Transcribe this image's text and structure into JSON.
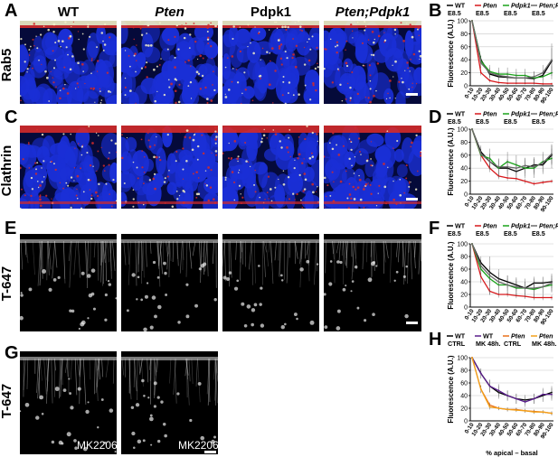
{
  "panels": {
    "A": "A",
    "B": "B",
    "C": "C",
    "D": "D",
    "E": "E",
    "F": "F",
    "G": "G",
    "H": "H"
  },
  "columns": [
    "WT",
    "Pten",
    "Pdpk1",
    "Pten;Pdpk1"
  ],
  "rows": {
    "A": "Rab5",
    "C": "Clathrin",
    "E": "T-647",
    "G": "T-647"
  },
  "g_labels": [
    "MK2206",
    "MK2206"
  ],
  "colors": {
    "wt": "#000000",
    "pten": "#d7191c",
    "pdpk1": "#1aa31a",
    "ptenpdpk1": "#6b6b6b",
    "wt_mk": "#5a1e8c",
    "pten_ctrl": "#e8701a",
    "pten_mk": "#f2a01a",
    "dapi": "#1a2fd6",
    "membrane": "#d42a2a",
    "puncta": "#f3efc8"
  },
  "chart_data": [
    {
      "id": "B",
      "type": "line",
      "legend": [
        {
          "key": "wt",
          "name": "WT",
          "sub": "E8.5",
          "italic": false
        },
        {
          "key": "pten",
          "name": "Pten",
          "sub": "E8.5",
          "italic": true
        },
        {
          "key": "pdpk1",
          "name": "Pdpk1",
          "sub": "E8.5",
          "italic": true
        },
        {
          "key": "ptenpdpk1",
          "name": "Pten;Pdpk1",
          "sub": "E8.5",
          "italic": true
        }
      ],
      "categories": [
        "0-10",
        "10-20",
        "20-30",
        "30-40",
        "40-50",
        "50-60",
        "60-70",
        "70-80",
        "80-90",
        "90-100"
      ],
      "ylabel": "Fluorescence (A.U.)",
      "xlabel": "",
      "ylim": [
        0,
        100
      ],
      "yticks": [
        "0",
        "20",
        "40",
        "60",
        "80",
        "100"
      ],
      "series": [
        {
          "key": "wt",
          "values": [
            100,
            40,
            18,
            14,
            13,
            12,
            12,
            11,
            16,
            38
          ],
          "err": [
            0,
            5,
            6,
            5,
            5,
            5,
            5,
            4,
            6,
            20
          ]
        },
        {
          "key": "pten",
          "values": [
            100,
            20,
            8,
            5,
            4,
            4,
            4,
            4,
            3,
            3
          ],
          "err": [
            0,
            4,
            3,
            2,
            2,
            2,
            2,
            2,
            2,
            2
          ]
        },
        {
          "key": "pdpk1",
          "values": [
            100,
            38,
            22,
            18,
            18,
            16,
            16,
            12,
            14,
            20
          ],
          "err": [
            0,
            8,
            10,
            10,
            10,
            10,
            10,
            10,
            10,
            10
          ]
        },
        {
          "key": "ptenpdpk1",
          "values": [
            100,
            35,
            20,
            16,
            14,
            12,
            12,
            14,
            20,
            40
          ],
          "err": [
            0,
            8,
            8,
            8,
            8,
            8,
            8,
            8,
            12,
            25
          ]
        }
      ]
    },
    {
      "id": "D",
      "type": "line",
      "legend": [
        {
          "key": "wt",
          "name": "WT",
          "sub": "E8.5",
          "italic": false
        },
        {
          "key": "pten",
          "name": "Pten",
          "sub": "E8.5",
          "italic": true
        },
        {
          "key": "pdpk1",
          "name": "Pdpk1",
          "sub": "E8.5",
          "italic": true
        },
        {
          "key": "ptenpdpk1",
          "name": "Pten;Pdpk1",
          "sub": "E8.5",
          "italic": true
        }
      ],
      "categories": [
        "0-10",
        "10-20",
        "20-30",
        "30-40",
        "40-50",
        "50-60",
        "60-70",
        "70-80",
        "80-90",
        "90-100"
      ],
      "ylabel": "Fluorescence (A.U.)",
      "xlabel": "",
      "ylim": [
        0,
        100
      ],
      "yticks": [
        "0",
        "20",
        "40",
        "60",
        "80",
        "100"
      ],
      "series": [
        {
          "key": "wt",
          "values": [
            100,
            65,
            50,
            40,
            40,
            35,
            40,
            45,
            45,
            60
          ],
          "err": [
            0,
            10,
            12,
            12,
            12,
            12,
            12,
            12,
            14,
            15
          ]
        },
        {
          "key": "pten",
          "values": [
            100,
            60,
            40,
            28,
            25,
            24,
            20,
            16,
            18,
            20
          ],
          "err": [
            0,
            6,
            6,
            5,
            4,
            4,
            4,
            3,
            3,
            3
          ]
        },
        {
          "key": "pdpk1",
          "values": [
            100,
            60,
            55,
            40,
            50,
            45,
            40,
            40,
            50,
            55
          ],
          "err": [
            0,
            10,
            15,
            15,
            15,
            15,
            15,
            15,
            15,
            15
          ]
        },
        {
          "key": "ptenpdpk1",
          "values": [
            100,
            62,
            50,
            42,
            42,
            40,
            44,
            42,
            48,
            62
          ],
          "err": [
            0,
            10,
            12,
            12,
            12,
            12,
            12,
            12,
            14,
            15
          ]
        }
      ]
    },
    {
      "id": "F",
      "type": "line",
      "legend": [
        {
          "key": "wt",
          "name": "WT",
          "sub": "E8.5",
          "italic": false
        },
        {
          "key": "pten",
          "name": "Pten",
          "sub": "E8.5",
          "italic": true
        },
        {
          "key": "pdpk1",
          "name": "Pdpk1",
          "sub": "E8.5",
          "italic": true
        },
        {
          "key": "ptenpdpk1",
          "name": "Pten;Pdpk1",
          "sub": "E8.5",
          "italic": true
        }
      ],
      "categories": [
        "0-10",
        "10-20",
        "20-30",
        "30-40",
        "40-50",
        "50-60",
        "60-70",
        "70-80",
        "80-90",
        "90-100"
      ],
      "ylabel": "Fluorescence (A.U.)",
      "xlabel": "",
      "ylim": [
        0,
        100
      ],
      "yticks": [
        "0",
        "20",
        "40",
        "60",
        "80",
        "100"
      ],
      "series": [
        {
          "key": "wt",
          "values": [
            100,
            70,
            55,
            45,
            40,
            35,
            30,
            38,
            38,
            40
          ],
          "err": [
            0,
            10,
            10,
            10,
            10,
            10,
            10,
            10,
            10,
            10
          ]
        },
        {
          "key": "pten",
          "values": [
            100,
            48,
            25,
            20,
            20,
            18,
            17,
            15,
            15,
            15
          ],
          "err": [
            0,
            10,
            6,
            5,
            4,
            4,
            4,
            4,
            4,
            4
          ]
        },
        {
          "key": "pdpk1",
          "values": [
            100,
            60,
            45,
            35,
            35,
            30,
            30,
            28,
            32,
            35
          ],
          "err": [
            0,
            12,
            12,
            10,
            10,
            10,
            10,
            10,
            10,
            10
          ]
        },
        {
          "key": "ptenpdpk1",
          "values": [
            100,
            65,
            50,
            40,
            35,
            32,
            30,
            30,
            32,
            38
          ],
          "err": [
            0,
            10,
            30,
            20,
            15,
            15,
            15,
            15,
            15,
            15
          ]
        }
      ]
    },
    {
      "id": "H",
      "type": "line",
      "legend": [
        {
          "key": "wt",
          "name": "WT",
          "sub": "CTRL",
          "italic": false
        },
        {
          "key": "wt_mk",
          "name": "WT",
          "sub": "MK 48h.",
          "italic": false
        },
        {
          "key": "pten_ctrl",
          "name": "Pten",
          "sub": "CTRL",
          "italic": true
        },
        {
          "key": "pten_mk",
          "name": "Pten",
          "sub": "MK 48h.",
          "italic": true
        }
      ],
      "categories": [
        "0-10",
        "10-20",
        "20-30",
        "30-40",
        "40-50",
        "50-60",
        "60-70",
        "70-80",
        "80-90",
        "90-100"
      ],
      "ylabel": "Fluorescence (A.U.)",
      "xlabel": "% apical – basal",
      "ylim": [
        0,
        100
      ],
      "yticks": [
        "0",
        "20",
        "40",
        "60",
        "80",
        "100"
      ],
      "series": [
        {
          "key": "wt",
          "values": [
            100,
            75,
            55,
            45,
            40,
            35,
            33,
            35,
            40,
            45
          ],
          "err": [
            0,
            8,
            10,
            10,
            8,
            8,
            8,
            8,
            10,
            10
          ]
        },
        {
          "key": "wt_mk",
          "values": [
            100,
            75,
            55,
            48,
            40,
            35,
            30,
            35,
            42,
            42
          ],
          "err": [
            0,
            8,
            10,
            10,
            8,
            8,
            8,
            8,
            10,
            10
          ]
        },
        {
          "key": "pten_ctrl",
          "values": [
            100,
            50,
            25,
            20,
            18,
            18,
            16,
            15,
            14,
            12
          ],
          "err": [
            0,
            6,
            4,
            3,
            3,
            3,
            3,
            3,
            3,
            3
          ]
        },
        {
          "key": "pten_mk",
          "values": [
            100,
            50,
            22,
            20,
            18,
            17,
            16,
            14,
            14,
            12
          ],
          "err": [
            0,
            6,
            4,
            3,
            3,
            3,
            3,
            3,
            3,
            3
          ]
        }
      ]
    }
  ]
}
